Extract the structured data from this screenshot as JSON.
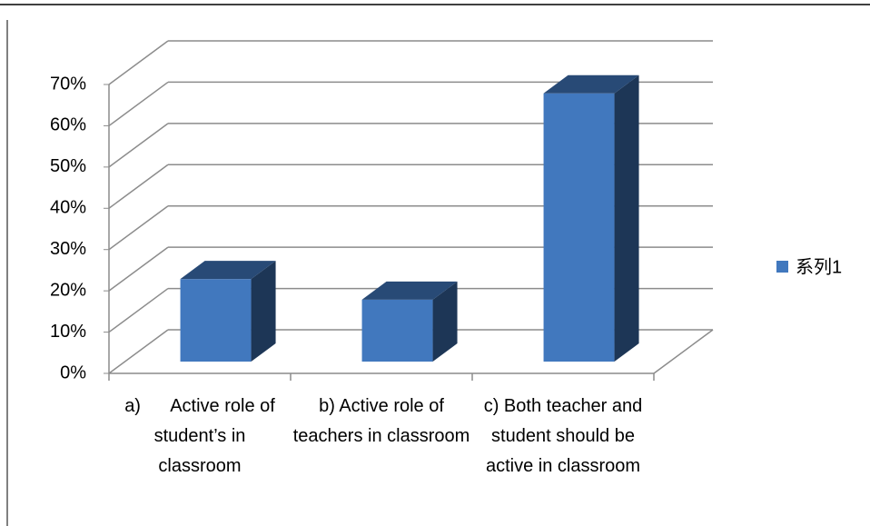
{
  "chart_data": {
    "type": "bar3d",
    "categories": [
      "a)      Active role of student’s in classroom",
      "b) Active role of teachers in classroom",
      "c) Both teacher and student should be active in classroom"
    ],
    "series": [
      {
        "name": "系列1",
        "color": "#4178be",
        "values": [
          20,
          15,
          65
        ]
      }
    ],
    "ylim": [
      0,
      70
    ],
    "yticks": [
      {
        "value": 0,
        "label": "0%"
      },
      {
        "value": 10,
        "label": "10%"
      },
      {
        "value": 20,
        "label": "20%"
      },
      {
        "value": 30,
        "label": "30%"
      },
      {
        "value": 40,
        "label": "40%"
      },
      {
        "value": 50,
        "label": "50%"
      },
      {
        "value": 60,
        "label": "60%"
      },
      {
        "value": 70,
        "label": "70%"
      }
    ],
    "grid": true,
    "legend": "right"
  }
}
